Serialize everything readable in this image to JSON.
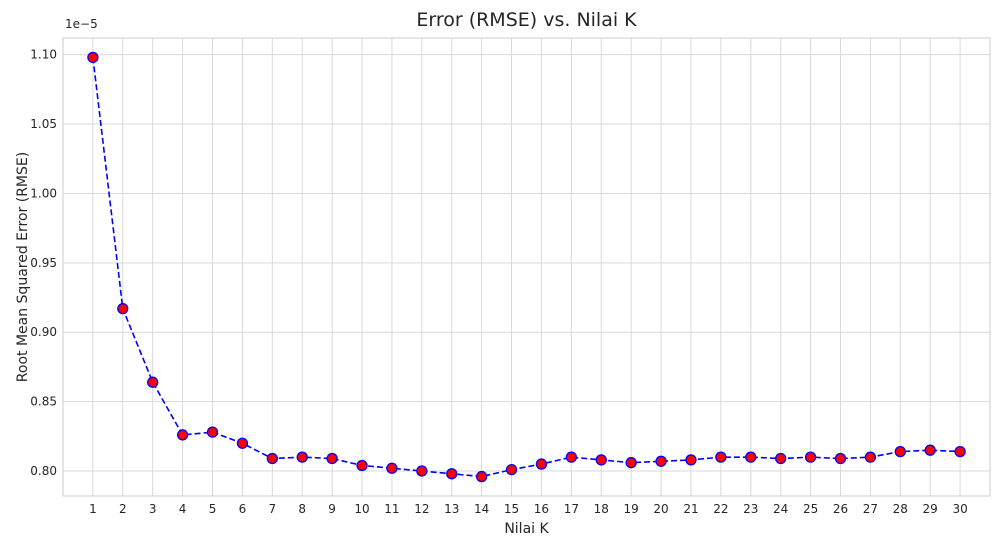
{
  "chart_data": {
    "type": "line",
    "title": "Error (RMSE) vs. Nilai K",
    "xlabel": "Nilai K",
    "ylabel": "Root Mean Squared Error (RMSE)",
    "y_offset_label": "1e−5",
    "x": [
      1,
      2,
      3,
      4,
      5,
      6,
      7,
      8,
      9,
      10,
      11,
      12,
      13,
      14,
      15,
      16,
      17,
      18,
      19,
      20,
      21,
      22,
      23,
      24,
      25,
      26,
      27,
      28,
      29,
      30
    ],
    "x_tick_labels": [
      "1",
      "2",
      "3",
      "4",
      "5",
      "6",
      "7",
      "8",
      "9",
      "10",
      "11",
      "12",
      "13",
      "14",
      "15",
      "16",
      "17",
      "18",
      "19",
      "20",
      "21",
      "22",
      "23",
      "24",
      "25",
      "26",
      "27",
      "28",
      "29",
      "30"
    ],
    "series": [
      {
        "values": [
          1.098,
          0.917,
          0.864,
          0.826,
          0.828,
          0.82,
          0.809,
          0.81,
          0.809,
          0.804,
          0.802,
          0.8,
          0.798,
          0.796,
          0.801,
          0.805,
          0.81,
          0.808,
          0.806,
          0.807,
          0.808,
          0.81,
          0.81,
          0.809,
          0.81,
          0.809,
          0.81,
          0.814,
          0.815,
          0.814
        ],
        "line_color": "#0000ff",
        "marker_face": "#ff0000",
        "marker_edge": "#0000ff",
        "line_style": "dashed"
      }
    ],
    "y_ticks": [
      0.8,
      0.85,
      0.9,
      0.95,
      1.0,
      1.05,
      1.1
    ],
    "y_tick_labels": [
      "0.80",
      "0.85",
      "0.90",
      "0.95",
      "1.00",
      "1.05",
      "1.10"
    ],
    "xlim": [
      0,
      31
    ],
    "ylim": [
      0.782,
      1.112
    ],
    "grid": true,
    "style": "whitegrid"
  }
}
